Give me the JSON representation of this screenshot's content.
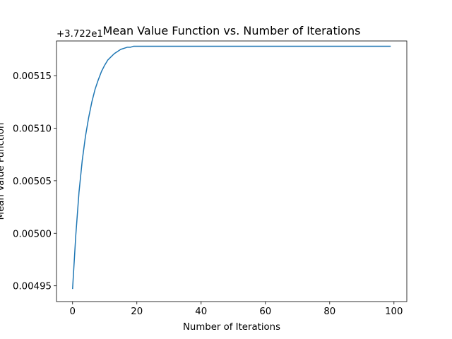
{
  "chart_data": {
    "type": "line",
    "title": "Mean Value Function vs. Number of Iterations",
    "xlabel": "Number of Iterations",
    "ylabel": "Mean Value Function",
    "y_offset_label": "+3.722e1",
    "xlim": [
      -5,
      104
    ],
    "ylim": [
      0.004935,
      0.005183
    ],
    "x_ticks": [
      0,
      20,
      40,
      60,
      80,
      100
    ],
    "x_tick_labels": [
      "0",
      "20",
      "40",
      "60",
      "80",
      "100"
    ],
    "y_ticks": [
      0.00495,
      0.005,
      0.00505,
      0.0051,
      0.00515
    ],
    "y_tick_labels": [
      "0.00495",
      "0.00500",
      "0.00505",
      "0.00510",
      "0.00515"
    ],
    "grid": false,
    "legend": "none",
    "line_color": "#1f77b4",
    "series": [
      {
        "x": [
          0,
          1,
          2,
          3,
          4,
          5,
          6,
          7,
          8,
          9,
          10,
          11,
          12,
          13,
          14,
          15,
          16,
          17,
          18,
          19,
          20,
          21,
          22,
          23,
          24,
          25,
          26,
          27,
          28,
          29,
          30,
          31,
          32,
          33,
          34,
          35,
          36,
          37,
          38,
          39,
          40,
          41,
          42,
          43,
          44,
          45,
          46,
          47,
          48,
          49,
          50,
          51,
          52,
          53,
          54,
          55,
          56,
          57,
          58,
          59,
          60,
          61,
          62,
          63,
          64,
          65,
          66,
          67,
          68,
          69,
          70,
          71,
          72,
          73,
          74,
          75,
          76,
          77,
          78,
          79,
          80,
          81,
          82,
          83,
          84,
          85,
          86,
          87,
          88,
          89,
          90,
          91,
          92,
          93,
          94,
          95,
          96,
          97,
          98,
          99
        ],
        "y": [
          0.004947,
          0.004998,
          0.005039,
          0.005069,
          0.005092,
          0.00511,
          0.005125,
          0.005137,
          0.005146,
          0.005154,
          0.00516,
          0.005165,
          0.005168,
          0.005171,
          0.005173,
          0.005175,
          0.005176,
          0.005177,
          0.005177,
          0.005178,
          0.005178,
          0.005178,
          0.005178,
          0.005178,
          0.005178,
          0.005178,
          0.005178,
          0.005178,
          0.005178,
          0.005178,
          0.005178,
          0.005178,
          0.005178,
          0.005178,
          0.005178,
          0.005178,
          0.005178,
          0.005178,
          0.005178,
          0.005178,
          0.005178,
          0.005178,
          0.005178,
          0.005178,
          0.005178,
          0.005178,
          0.005178,
          0.005178,
          0.005178,
          0.005178,
          0.005178,
          0.005178,
          0.005178,
          0.005178,
          0.005178,
          0.005178,
          0.005178,
          0.005178,
          0.005178,
          0.005178,
          0.005178,
          0.005178,
          0.005178,
          0.005178,
          0.005178,
          0.005178,
          0.005178,
          0.005178,
          0.005178,
          0.005178,
          0.005178,
          0.005178,
          0.005178,
          0.005178,
          0.005178,
          0.005178,
          0.005178,
          0.005178,
          0.005178,
          0.005178,
          0.005178,
          0.005178,
          0.005178,
          0.005178,
          0.005178,
          0.005178,
          0.005178,
          0.005178,
          0.005178,
          0.005178,
          0.005178,
          0.005178,
          0.005178,
          0.005178,
          0.005178,
          0.005178,
          0.005178,
          0.005178,
          0.005178,
          0.005178
        ]
      }
    ]
  }
}
